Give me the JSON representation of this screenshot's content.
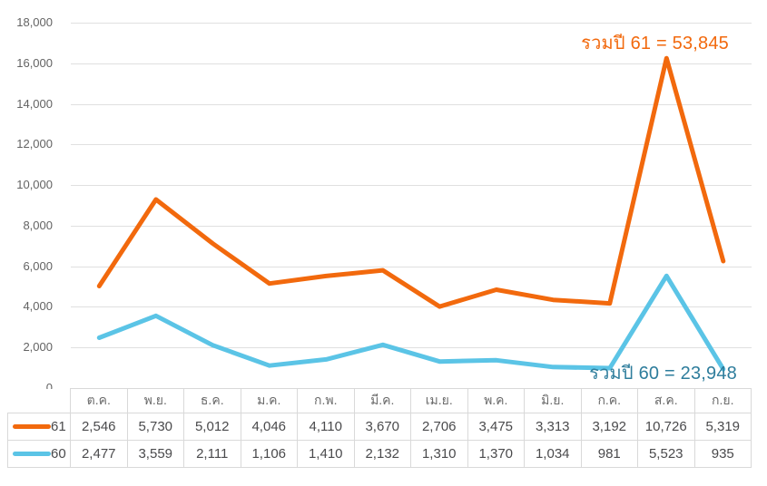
{
  "chart_data": {
    "type": "line",
    "stacked": true,
    "title": "",
    "xlabel": "",
    "ylabel": "",
    "categories": [
      "ต.ค.",
      "พ.ย.",
      "ธ.ค.",
      "ม.ค.",
      "ก.พ.",
      "มี.ค.",
      "เม.ย.",
      "พ.ค.",
      "มิ.ย.",
      "ก.ค.",
      "ส.ค.",
      "ก.ย."
    ],
    "series": [
      {
        "name": "61",
        "color": "#F2690D",
        "values": [
          2546,
          5730,
          5012,
          4046,
          4110,
          3670,
          2706,
          3475,
          3313,
          3192,
          10726,
          5319
        ],
        "total": 53845
      },
      {
        "name": "60",
        "color": "#5BC4E6",
        "values": [
          2477,
          3559,
          2111,
          1106,
          1410,
          2132,
          1310,
          1370,
          1034,
          981,
          5523,
          935
        ],
        "total": 23948
      }
    ],
    "ylim": [
      0,
      18000
    ],
    "y_ticks": [
      0,
      2000,
      4000,
      6000,
      8000,
      10000,
      12000,
      14000,
      16000,
      18000
    ],
    "grid": "horizontal",
    "legend_position": "table-left",
    "annotations": [
      {
        "text": "รวมปี 61 = 53,845",
        "color": "#F2690D"
      },
      {
        "text": "รวมปี 60 = 23,948",
        "color": "#2E7D9C"
      }
    ]
  },
  "style": {
    "gridline_color": "#E0E0E0",
    "axis_label_color": "#636363",
    "table_border_color": "#D9D9D9",
    "table_header_color": "#6B6B6B",
    "table_value_color": "#4A4A4C"
  }
}
